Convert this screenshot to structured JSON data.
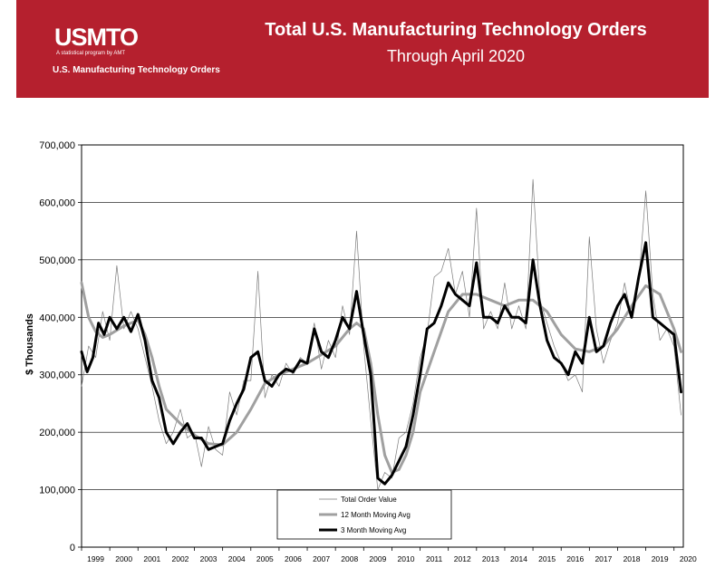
{
  "header": {
    "logo_text": "USMTO",
    "logo_subtitle": "A statistical program by AMT",
    "program_name": "U.S. Manufacturing Technology Orders",
    "title": "Total U.S. Manufacturing Technology Orders",
    "subtitle": "Through April 2020",
    "banner_color": "#b5202e"
  },
  "chart_data": {
    "type": "line",
    "title": "Total U.S. Manufacturing Technology Orders",
    "subtitle": "Through April 2020",
    "xlabel": "",
    "ylabel": "$ Thousands",
    "ylim": [
      0,
      700000
    ],
    "xlim": [
      1999.0,
      2020.33
    ],
    "grid": true,
    "legend_position": "bottom-center",
    "yticks": [
      0,
      100000,
      200000,
      300000,
      400000,
      500000,
      600000,
      700000
    ],
    "ytick_labels": [
      "0",
      "100,000",
      "200,000",
      "300,000",
      "400,000",
      "500,000",
      "600,000",
      "700,000"
    ],
    "xtick_labels": [
      "1999",
      "2000",
      "2001",
      "2002",
      "2003",
      "2004",
      "2005",
      "2006",
      "2007",
      "2008",
      "2009",
      "2010",
      "2011",
      "2012",
      "2013",
      "2014",
      "2015",
      "2016",
      "2017",
      "2018",
      "2019",
      "2020"
    ],
    "series": [
      {
        "name": "Total Order Value",
        "color": "#7a7a7a",
        "width": 0.7,
        "x": [
          1999.0,
          1999.25,
          1999.5,
          1999.75,
          2000.0,
          2000.25,
          2000.5,
          2000.75,
          2001.0,
          2001.25,
          2001.5,
          2001.75,
          2002.0,
          2002.25,
          2002.5,
          2002.75,
          2003.0,
          2003.25,
          2003.5,
          2003.75,
          2004.0,
          2004.25,
          2004.5,
          2004.75,
          2005.0,
          2005.25,
          2005.5,
          2005.75,
          2006.0,
          2006.25,
          2006.5,
          2006.75,
          2007.0,
          2007.25,
          2007.5,
          2007.75,
          2008.0,
          2008.25,
          2008.5,
          2008.75,
          2009.0,
          2009.25,
          2009.5,
          2009.75,
          2010.0,
          2010.25,
          2010.5,
          2010.75,
          2011.0,
          2011.25,
          2011.5,
          2011.75,
          2012.0,
          2012.25,
          2012.5,
          2012.75,
          2013.0,
          2013.25,
          2013.5,
          2013.75,
          2014.0,
          2014.25,
          2014.5,
          2014.75,
          2015.0,
          2015.25,
          2015.5,
          2015.75,
          2016.0,
          2016.25,
          2016.5,
          2016.75,
          2017.0,
          2017.25,
          2017.5,
          2017.75,
          2018.0,
          2018.25,
          2018.5,
          2018.75,
          2019.0,
          2019.25,
          2019.5,
          2019.75,
          2020.0,
          2020.25
        ],
        "values": [
          280000,
          350000,
          330000,
          410000,
          360000,
          490000,
          380000,
          410000,
          380000,
          330000,
          280000,
          220000,
          180000,
          200000,
          240000,
          190000,
          200000,
          140000,
          210000,
          170000,
          160000,
          270000,
          230000,
          290000,
          290000,
          480000,
          260000,
          300000,
          280000,
          320000,
          300000,
          330000,
          320000,
          390000,
          310000,
          360000,
          330000,
          420000,
          370000,
          550000,
          350000,
          220000,
          100000,
          130000,
          120000,
          190000,
          200000,
          250000,
          330000,
          370000,
          470000,
          480000,
          520000,
          440000,
          480000,
          400000,
          590000,
          380000,
          410000,
          380000,
          460000,
          380000,
          420000,
          380000,
          640000,
          430000,
          390000,
          350000,
          320000,
          290000,
          300000,
          270000,
          540000,
          380000,
          320000,
          360000,
          390000,
          460000,
          400000,
          460000,
          620000,
          440000,
          360000,
          380000,
          350000,
          230000
        ]
      },
      {
        "name": "12 Month Moving Avg",
        "color": "#a0a0a0",
        "width": 3,
        "x": [
          1999.0,
          1999.25,
          1999.5,
          1999.75,
          2000.0,
          2000.5,
          2001.0,
          2001.25,
          2001.5,
          2001.75,
          2002.0,
          2002.5,
          2003.0,
          2003.5,
          2004.0,
          2004.5,
          2005.0,
          2005.5,
          2006.0,
          2006.5,
          2007.0,
          2007.5,
          2008.0,
          2008.5,
          2008.75,
          2009.0,
          2009.25,
          2009.5,
          2009.75,
          2010.0,
          2010.25,
          2010.5,
          2010.75,
          2011.0,
          2011.5,
          2012.0,
          2012.5,
          2013.0,
          2013.5,
          2014.0,
          2014.5,
          2015.0,
          2015.5,
          2016.0,
          2016.5,
          2017.0,
          2017.5,
          2018.0,
          2018.5,
          2019.0,
          2019.5,
          2020.0,
          2020.25
        ],
        "values": [
          460000,
          400000,
          375000,
          365000,
          370000,
          385000,
          395000,
          370000,
          330000,
          280000,
          240000,
          215000,
          195000,
          180000,
          178000,
          200000,
          240000,
          285000,
          300000,
          310000,
          320000,
          335000,
          350000,
          380000,
          390000,
          380000,
          320000,
          230000,
          160000,
          130000,
          135000,
          160000,
          200000,
          270000,
          340000,
          410000,
          440000,
          440000,
          430000,
          420000,
          430000,
          430000,
          410000,
          370000,
          345000,
          340000,
          350000,
          380000,
          420000,
          455000,
          440000,
          380000,
          340000
        ]
      },
      {
        "name": "3 Month Moving Avg",
        "color": "#000000",
        "width": 3,
        "x": [
          1999.0,
          1999.2,
          1999.4,
          1999.6,
          1999.8,
          2000.0,
          2000.25,
          2000.5,
          2000.75,
          2001.0,
          2001.25,
          2001.5,
          2001.75,
          2002.0,
          2002.25,
          2002.5,
          2002.75,
          2003.0,
          2003.25,
          2003.5,
          2003.75,
          2004.0,
          2004.25,
          2004.5,
          2004.75,
          2005.0,
          2005.25,
          2005.5,
          2005.75,
          2006.0,
          2006.25,
          2006.5,
          2006.75,
          2007.0,
          2007.25,
          2007.5,
          2007.75,
          2008.0,
          2008.25,
          2008.5,
          2008.75,
          2009.0,
          2009.25,
          2009.5,
          2009.75,
          2010.0,
          2010.25,
          2010.5,
          2010.75,
          2011.0,
          2011.25,
          2011.5,
          2011.75,
          2012.0,
          2012.25,
          2012.5,
          2012.75,
          2013.0,
          2013.25,
          2013.5,
          2013.75,
          2014.0,
          2014.25,
          2014.5,
          2014.75,
          2015.0,
          2015.25,
          2015.5,
          2015.75,
          2016.0,
          2016.25,
          2016.5,
          2016.75,
          2017.0,
          2017.25,
          2017.5,
          2017.75,
          2018.0,
          2018.25,
          2018.5,
          2018.75,
          2019.0,
          2019.25,
          2019.5,
          2019.75,
          2020.0,
          2020.25
        ],
        "values": [
          340000,
          305000,
          330000,
          390000,
          370000,
          400000,
          380000,
          400000,
          375000,
          405000,
          360000,
          290000,
          260000,
          200000,
          180000,
          200000,
          215000,
          190000,
          190000,
          170000,
          175000,
          180000,
          220000,
          250000,
          275000,
          330000,
          340000,
          290000,
          280000,
          300000,
          310000,
          305000,
          325000,
          320000,
          380000,
          340000,
          330000,
          360000,
          400000,
          380000,
          445000,
          370000,
          300000,
          120000,
          110000,
          125000,
          150000,
          175000,
          230000,
          300000,
          380000,
          390000,
          420000,
          460000,
          440000,
          430000,
          420000,
          495000,
          400000,
          400000,
          390000,
          420000,
          400000,
          400000,
          390000,
          500000,
          420000,
          360000,
          330000,
          320000,
          300000,
          340000,
          320000,
          400000,
          340000,
          350000,
          390000,
          420000,
          440000,
          400000,
          470000,
          530000,
          400000,
          390000,
          380000,
          370000,
          270000
        ]
      }
    ]
  }
}
